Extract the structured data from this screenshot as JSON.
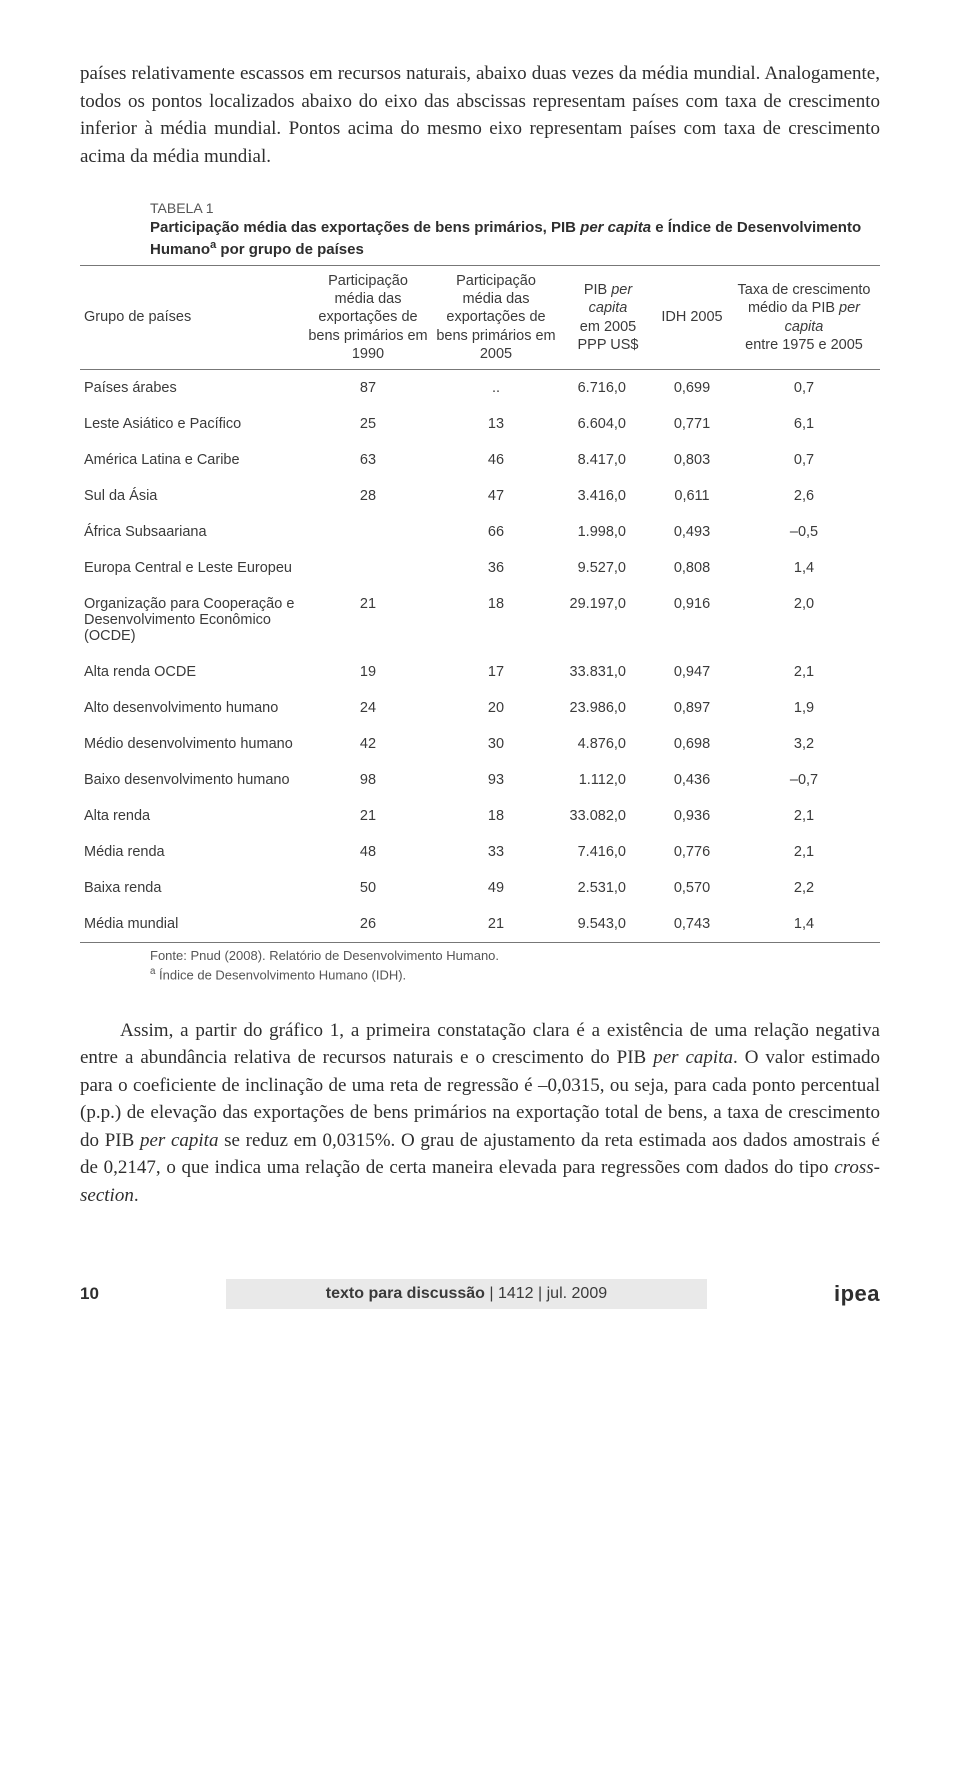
{
  "paragraphs": {
    "p1": "países relativamente escassos em recursos naturais, abaixo duas vezes da média mundial. Analogamente, todos os pontos localizados abaixo do eixo das abscissas representam países com taxa de crescimento inferior à média mundial. Pontos acima do mesmo eixo representam países com taxa de crescimento acima da média mundial.",
    "p2_prefix": "Assim, a partir do gráfico 1, a primeira constatação clara é a existência de uma relação negativa entre a abundância relativa de recursos naturais e o crescimento do PIB ",
    "p2_ital1": "per capita",
    "p2_mid1": ". O valor estimado para o coeficiente de inclinação de uma reta de regressão é –0,0315, ou seja, para cada ponto percentual (p.p.) de elevação das exportações de bens primários na exportação total de bens, a taxa de crescimento do PIB ",
    "p2_ital2": "per capita",
    "p2_mid2": " se reduz em 0,0315%. O grau de ajustamento da reta estimada aos dados amostrais é de 0,2147, o que indica uma relação de certa maneira elevada para regressões com dados do tipo ",
    "p2_ital3": "cross-section",
    "p2_end": "."
  },
  "table": {
    "label": "TABELA 1",
    "title_pre": "Participação média das exportações de bens primários, PIB ",
    "title_i1": "per capita",
    "title_mid": " e Índice de Desenvolvimento Humano",
    "title_sup": "a",
    "title_post": " por grupo de países",
    "headers": {
      "c1": "Grupo de países",
      "c2": "Participação média das exportações de bens primários em 1990",
      "c3": "Participação média das exportações de bens primários em 2005",
      "c4_pre": "PIB ",
      "c4_i": "per capita",
      "c4_post": " em 2005 PPP US$",
      "c5": "IDH 2005",
      "c6_pre": "Taxa de crescimento médio da PIB ",
      "c6_i": "per capita",
      "c6_post": " entre 1975 e 2005"
    },
    "rows": [
      {
        "g": "Países árabes",
        "a": "87",
        "b": "..",
        "c": "6.716,0",
        "d": "0,699",
        "e": "0,7"
      },
      {
        "g": "Leste Asiático e Pacífico",
        "a": "25",
        "b": "13",
        "c": "6.604,0",
        "d": "0,771",
        "e": "6,1"
      },
      {
        "g": "América Latina e Caribe",
        "a": "63",
        "b": "46",
        "c": "8.417,0",
        "d": "0,803",
        "e": "0,7"
      },
      {
        "g": "Sul da Ásia",
        "a": "28",
        "b": "47",
        "c": "3.416,0",
        "d": "0,611",
        "e": "2,6"
      },
      {
        "g": "África Subsaariana",
        "a": "",
        "b": "66",
        "c": "1.998,0",
        "d": "0,493",
        "e": "–0,5"
      },
      {
        "g": "Europa Central e Leste Europeu",
        "a": "",
        "b": "36",
        "c": "9.527,0",
        "d": "0,808",
        "e": "1,4"
      },
      {
        "g": "Organização para Cooperação e Desenvolvimento Econômico (OCDE)",
        "a": "21",
        "b": "18",
        "c": "29.197,0",
        "d": "0,916",
        "e": "2,0"
      },
      {
        "g": "Alta renda OCDE",
        "a": "19",
        "b": "17",
        "c": "33.831,0",
        "d": "0,947",
        "e": "2,1"
      },
      {
        "g": "Alto desenvolvimento humano",
        "a": "24",
        "b": "20",
        "c": "23.986,0",
        "d": "0,897",
        "e": "1,9"
      },
      {
        "g": "Médio desenvolvimento humano",
        "a": "42",
        "b": "30",
        "c": "4.876,0",
        "d": "0,698",
        "e": "3,2"
      },
      {
        "g": "Baixo desenvolvimento humano",
        "a": "98",
        "b": "93",
        "c": "1.112,0",
        "d": "0,436",
        "e": "–0,7"
      },
      {
        "g": "Alta renda",
        "a": "21",
        "b": "18",
        "c": "33.082,0",
        "d": "0,936",
        "e": "2,1"
      },
      {
        "g": "Média renda",
        "a": "48",
        "b": "33",
        "c": "7.416,0",
        "d": "0,776",
        "e": "2,1"
      },
      {
        "g": "Baixa renda",
        "a": "50",
        "b": "49",
        "c": "2.531,0",
        "d": "0,570",
        "e": "2,2"
      },
      {
        "g": "Média mundial",
        "a": "26",
        "b": "21",
        "c": "9.543,0",
        "d": "0,743",
        "e": "1,4"
      }
    ],
    "note1": "Fonte: Pnud (2008). Relatório de Desenvolvimento Humano.",
    "note2_sup": "a",
    "note2": " Índice de Desenvolvimento Humano (IDH)."
  },
  "footer": {
    "page": "10",
    "center_bold": "texto para discussão",
    "center_rest": " | 1412 | jul. 2009",
    "logo": "ipea"
  },
  "colors": {
    "text": "#3a3a3a",
    "rule": "#777777",
    "footer_bg": "#e9e9e9",
    "background": "#ffffff"
  }
}
